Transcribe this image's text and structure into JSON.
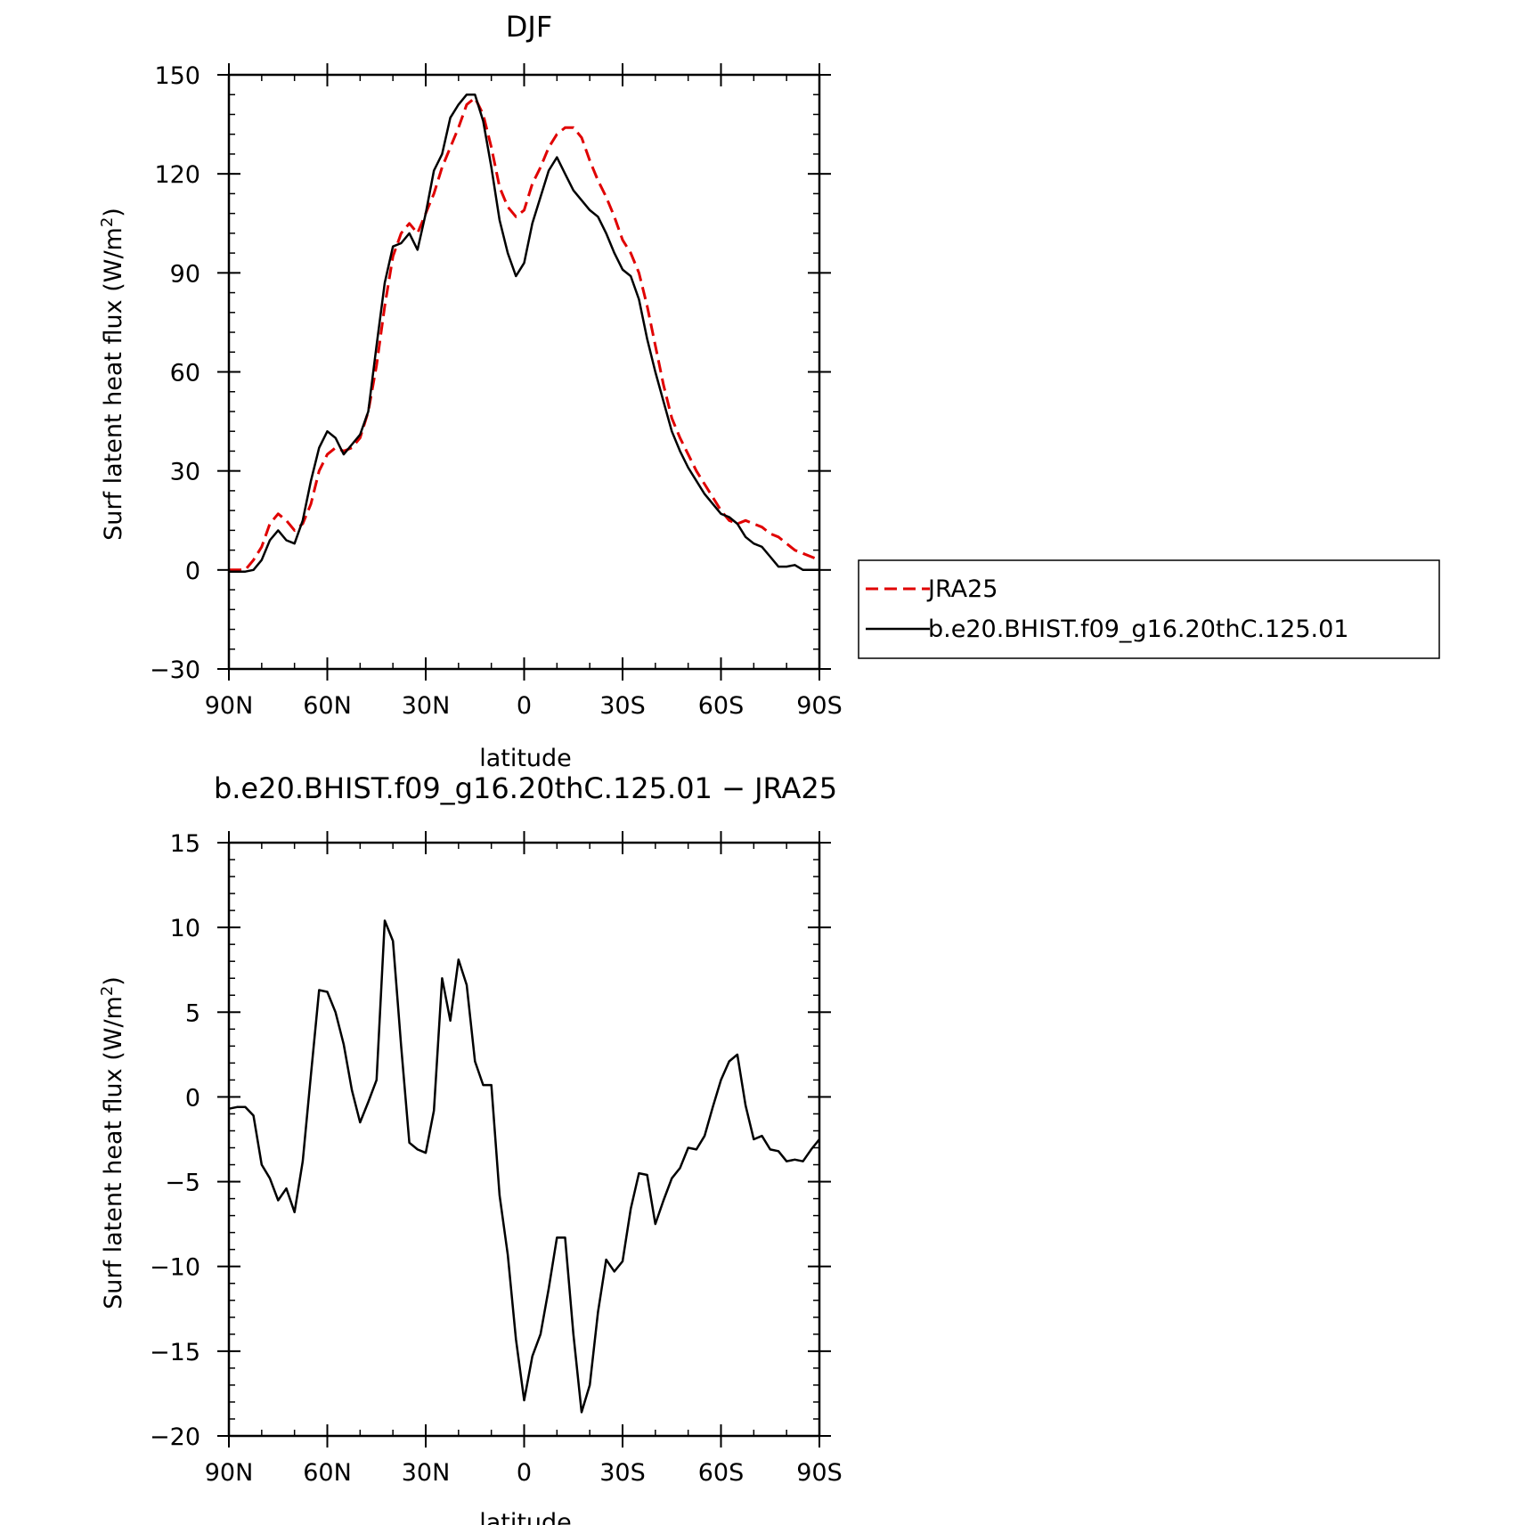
{
  "chart_data": [
    {
      "type": "line",
      "title": "DJF",
      "xlabel": "latitude",
      "ylabel": "Surf latent heat flux (W/m",
      "ylabel_sup": "2",
      "ylabel_close": ")",
      "xlim": [
        90,
        -90
      ],
      "ylim": [
        -30,
        150
      ],
      "xticks": [
        90,
        60,
        30,
        0,
        -30,
        -60,
        -90
      ],
      "xtick_labels": [
        "90N",
        "60N",
        "30N",
        "0",
        "30S",
        "60S",
        "90S"
      ],
      "yticks": [
        -30,
        0,
        30,
        60,
        90,
        120,
        150
      ],
      "ytick_labels": [
        "−30",
        "0",
        "30",
        "60",
        "90",
        "120",
        "150"
      ],
      "legend_position": "right",
      "series": [
        {
          "name": "JRA25",
          "color": "#e00000",
          "dash": "dashed",
          "x": [
            90,
            87.5,
            85,
            82.5,
            80,
            77.5,
            75,
            72.5,
            70,
            67.5,
            65,
            62.5,
            60,
            57.5,
            55,
            52.5,
            50,
            47.5,
            45,
            42.5,
            40,
            37.5,
            35,
            32.5,
            30,
            27.5,
            25,
            22.5,
            20,
            17.5,
            15,
            12.5,
            10,
            7.5,
            5,
            2.5,
            0,
            -2.5,
            -5,
            -7.5,
            -10,
            -12.5,
            -15,
            -17.5,
            -20,
            -22.5,
            -25,
            -27.5,
            -30,
            -32.5,
            -35,
            -37.5,
            -40,
            -42.5,
            -45,
            -47.5,
            -50,
            -52.5,
            -55,
            -57.5,
            -60,
            -62.5,
            -65,
            -67.5,
            -70,
            -72.5,
            -75,
            -77.5,
            -80,
            -82.5,
            -85,
            -87.5,
            -90
          ],
          "values": [
            0,
            0,
            0,
            3,
            7,
            14,
            17,
            15,
            12,
            14,
            20,
            30,
            35,
            37,
            36,
            37,
            40,
            48,
            62,
            80,
            95,
            102,
            105,
            102,
            108,
            114,
            122,
            128,
            134,
            141,
            143,
            138,
            128,
            116,
            110,
            107,
            109,
            117,
            122,
            128,
            132,
            134,
            134,
            131,
            124,
            118,
            113,
            107,
            100,
            96,
            90,
            80,
            68,
            56,
            46,
            40,
            35,
            30,
            26,
            22,
            18,
            15,
            14,
            15,
            14,
            13,
            11,
            10,
            8,
            6,
            5,
            4,
            3
          ]
        },
        {
          "name": "b.e20.BHIST.f09_g16.20thC.125.01",
          "color": "#000000",
          "dash": "solid",
          "x": [
            90,
            87.5,
            85,
            82.5,
            80,
            77.5,
            75,
            72.5,
            70,
            67.5,
            65,
            62.5,
            60,
            57.5,
            55,
            52.5,
            50,
            47.5,
            45,
            42.5,
            40,
            37.5,
            35,
            32.5,
            30,
            27.5,
            25,
            22.5,
            20,
            17.5,
            15,
            12.5,
            10,
            7.5,
            5,
            2.5,
            0,
            -2.5,
            -5,
            -7.5,
            -10,
            -12.5,
            -15,
            -17.5,
            -20,
            -22.5,
            -25,
            -27.5,
            -30,
            -32.5,
            -35,
            -37.5,
            -40,
            -42.5,
            -45,
            -47.5,
            -50,
            -52.5,
            -55,
            -57.5,
            -60,
            -62.5,
            -65,
            -67.5,
            -70,
            -72.5,
            -75,
            -77.5,
            -80,
            -82.5,
            -85,
            -87.5,
            -90
          ],
          "values": [
            -0.5,
            -0.5,
            -0.5,
            0,
            3,
            9,
            12,
            9,
            8,
            15,
            27,
            37,
            42,
            40,
            35,
            38,
            41,
            48,
            68,
            87,
            98,
            99,
            102,
            97,
            108,
            121,
            126,
            137,
            141,
            144,
            144,
            136,
            122,
            106,
            96,
            89,
            93,
            105,
            113,
            121,
            125,
            120,
            115,
            112,
            109,
            107,
            102,
            96,
            91,
            89,
            82,
            70,
            60,
            51,
            42,
            36,
            31,
            27,
            23,
            20,
            17,
            16,
            14,
            10,
            8,
            7,
            4,
            1,
            1,
            1.5,
            0,
            0,
            0
          ]
        }
      ]
    },
    {
      "type": "line",
      "title": "b.e20.BHIST.f09_g16.20thC.125.01 − JRA25",
      "xlabel": "latitude",
      "ylabel": "Surf latent heat flux (W/m",
      "ylabel_sup": "2",
      "ylabel_close": ")",
      "xlim": [
        90,
        -90
      ],
      "ylim": [
        -20,
        15
      ],
      "xticks": [
        90,
        60,
        30,
        0,
        -30,
        -60,
        -90
      ],
      "xtick_labels": [
        "90N",
        "60N",
        "30N",
        "0",
        "30S",
        "60S",
        "90S"
      ],
      "yticks": [
        -20,
        -15,
        -10,
        -5,
        0,
        5,
        10,
        15
      ],
      "ytick_labels": [
        "−20",
        "−15",
        "−10",
        "−5",
        "0",
        "5",
        "10",
        "15"
      ],
      "series": [
        {
          "color": "#000000",
          "dash": "solid",
          "x": [
            90,
            87.5,
            85,
            82.5,
            80,
            77.5,
            75,
            72.5,
            70,
            67.5,
            65,
            62.5,
            60,
            57.5,
            55,
            52.5,
            50,
            47.5,
            45,
            42.5,
            40,
            37.5,
            35,
            32.5,
            30,
            27.5,
            25,
            22.5,
            20,
            17.5,
            15,
            12.5,
            10,
            7.5,
            5,
            2.5,
            0,
            -2.5,
            -5,
            -7.5,
            -10,
            -12.5,
            -15,
            -17.5,
            -20,
            -22.5,
            -25,
            -27.5,
            -30,
            -32.5,
            -35,
            -37.5,
            -40,
            -42.5,
            -45,
            -47.5,
            -50,
            -52.5,
            -55,
            -57.5,
            -60,
            -62.5,
            -65,
            -67.5,
            -70,
            -72.5,
            -75,
            -77.5,
            -80,
            -82.5,
            -85,
            -87.5,
            -90
          ],
          "values": [
            -0.7,
            -0.6,
            -0.6,
            -1.1,
            -4.0,
            -4.8,
            -6.1,
            -5.4,
            -6.8,
            -3.8,
            1.3,
            6.3,
            6.2,
            5.0,
            3.1,
            0.4,
            -1.5,
            -0.3,
            1.0,
            10.4,
            9.2,
            3.0,
            -2.7,
            -3.1,
            -3.3,
            -0.8,
            7.0,
            4.5,
            8.1,
            6.6,
            2.1,
            0.7,
            0.7,
            -5.8,
            -9.3,
            -14.3,
            -17.9,
            -15.3,
            -14.0,
            -11.3,
            -8.3,
            -8.3,
            -14.0,
            -18.6,
            -17.0,
            -12.7,
            -9.6,
            -10.3,
            -9.7,
            -6.6,
            -4.5,
            -4.6,
            -7.5,
            -6.1,
            -4.8,
            -4.2,
            -3.0,
            -3.1,
            -2.3,
            -0.6,
            1.0,
            2.1,
            2.5,
            -0.5,
            -2.5,
            -2.3,
            -3.1,
            -3.2,
            -3.8,
            -3.7,
            -3.8,
            -3.1,
            -2.5
          ]
        }
      ]
    }
  ]
}
